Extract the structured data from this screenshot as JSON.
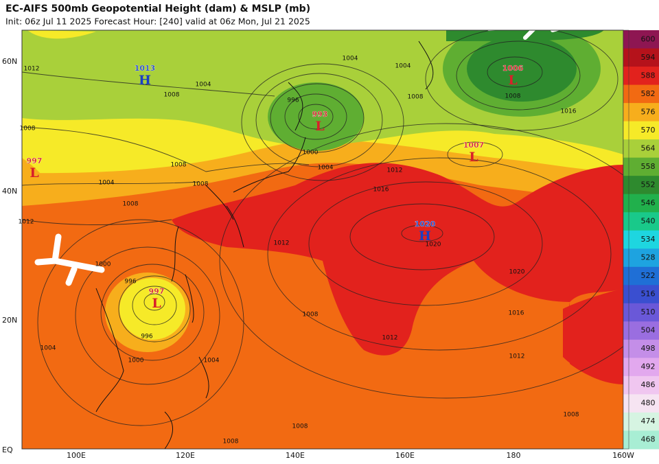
{
  "header": {
    "title": "EC-AIFS 500mb Geopotential Height (dam) & MSLP (mb)",
    "subtitle": "Init: 06z Jul 11 2025   Forecast Hour: [240]   valid at 06z Mon, Jul 21 2025"
  },
  "map": {
    "lat_labels": [
      "60N",
      "40N",
      "20N",
      "EQ"
    ],
    "lon_labels": [
      "100E",
      "120E",
      "140E",
      "160E",
      "180",
      "160W"
    ],
    "centers": [
      {
        "value": 1013,
        "letter": "H",
        "kind": "high"
      },
      {
        "value": 993,
        "letter": "L",
        "kind": "low"
      },
      {
        "value": 1006,
        "letter": "L",
        "kind": "low"
      },
      {
        "value": 1007,
        "letter": "L",
        "kind": "low"
      },
      {
        "value": 1020,
        "letter": "H",
        "kind": "high"
      },
      {
        "value": 997,
        "letter": "L",
        "kind": "low"
      },
      {
        "value": 997,
        "letter": "L",
        "kind": "low"
      }
    ],
    "contour_labels": [
      1012,
      1008,
      1004,
      1008,
      1008,
      1004,
      1008,
      1008,
      1012,
      1000,
      996,
      996,
      1000,
      1004,
      1004,
      1008,
      1012,
      1016,
      1012,
      1004,
      1000,
      996,
      1004,
      1008,
      1008,
      1016,
      1020,
      1016,
      1012,
      1012,
      1008,
      1008,
      1008,
      1004,
      1020
    ]
  },
  "colorbar": [
    {
      "label": 600,
      "color": "#8e1652"
    },
    {
      "label": 594,
      "color": "#b5121b"
    },
    {
      "label": 588,
      "color": "#e2221d"
    },
    {
      "label": 582,
      "color": "#f26a12"
    },
    {
      "label": 576,
      "color": "#f7ae1c"
    },
    {
      "label": 570,
      "color": "#f6ea28"
    },
    {
      "label": 564,
      "color": "#a9d03a"
    },
    {
      "label": 558,
      "color": "#5fae32"
    },
    {
      "label": 552,
      "color": "#2e8a2e"
    },
    {
      "label": 546,
      "color": "#21b04c"
    },
    {
      "label": 540,
      "color": "#19c98a"
    },
    {
      "label": 534,
      "color": "#1ed6e0"
    },
    {
      "label": 528,
      "color": "#1ea3e0"
    },
    {
      "label": 522,
      "color": "#1f6fd6"
    },
    {
      "label": 516,
      "color": "#3a4fd0"
    },
    {
      "label": 510,
      "color": "#6a58d8"
    },
    {
      "label": 504,
      "color": "#9a6ee0"
    },
    {
      "label": 498,
      "color": "#c48ee8"
    },
    {
      "label": 492,
      "color": "#e2a8ee"
    },
    {
      "label": 486,
      "color": "#f0c6f0"
    },
    {
      "label": 480,
      "color": "#f6e4f2"
    },
    {
      "label": 474,
      "color": "#d6f4e2"
    },
    {
      "label": 468,
      "color": "#a8eed4"
    }
  ]
}
